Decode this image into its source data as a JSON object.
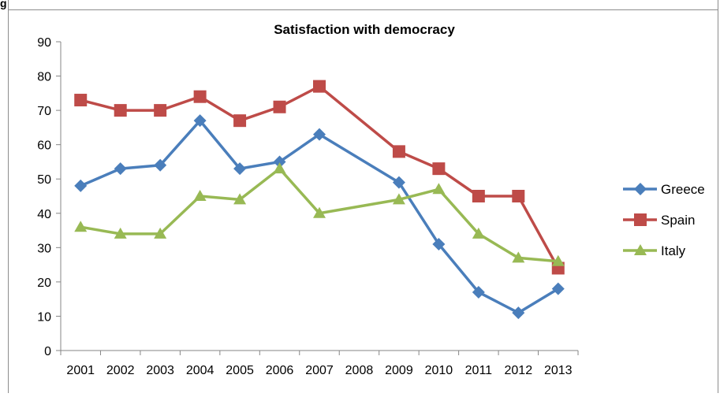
{
  "header_fragment": "g",
  "chart_data": {
    "type": "line",
    "title": "Satisfaction with democracy",
    "xlabel": "",
    "ylabel": "",
    "categories": [
      "2001",
      "2002",
      "2003",
      "2004",
      "2005",
      "2006",
      "2007",
      "2008",
      "2009",
      "2010",
      "2011",
      "2012",
      "2013"
    ],
    "ylim": [
      0,
      90
    ],
    "yticks": [
      0,
      10,
      20,
      30,
      40,
      50,
      60,
      70,
      80,
      90
    ],
    "grid": false,
    "legend_position": "right",
    "series": [
      {
        "name": "Greece",
        "color": "#4a7ebb",
        "marker": "diamond",
        "points": [
          [
            "2001",
            48
          ],
          [
            "2002",
            53
          ],
          [
            "2003",
            54
          ],
          [
            "2004",
            67
          ],
          [
            "2005",
            53
          ],
          [
            "2006",
            55
          ],
          [
            "2007",
            63
          ],
          [
            "2009",
            49
          ],
          [
            "2010",
            31
          ],
          [
            "2011",
            17
          ],
          [
            "2012",
            11
          ],
          [
            "2013",
            18
          ]
        ]
      },
      {
        "name": "Spain",
        "color": "#be4b48",
        "marker": "square",
        "points": [
          [
            "2001",
            73
          ],
          [
            "2002",
            70
          ],
          [
            "2003",
            70
          ],
          [
            "2004",
            74
          ],
          [
            "2005",
            67
          ],
          [
            "2006",
            71
          ],
          [
            "2007",
            77
          ],
          [
            "2009",
            58
          ],
          [
            "2010",
            53
          ],
          [
            "2011",
            45
          ],
          [
            "2012",
            45
          ],
          [
            "2013",
            24
          ]
        ]
      },
      {
        "name": "Italy",
        "color": "#98b954",
        "marker": "triangle",
        "points": [
          [
            "2001",
            36
          ],
          [
            "2002",
            34
          ],
          [
            "2003",
            34
          ],
          [
            "2004",
            45
          ],
          [
            "2005",
            44
          ],
          [
            "2006",
            53
          ],
          [
            "2007",
            40
          ],
          [
            "2009",
            44
          ],
          [
            "2010",
            47
          ],
          [
            "2011",
            34
          ],
          [
            "2012",
            27
          ],
          [
            "2013",
            26
          ]
        ]
      }
    ]
  }
}
